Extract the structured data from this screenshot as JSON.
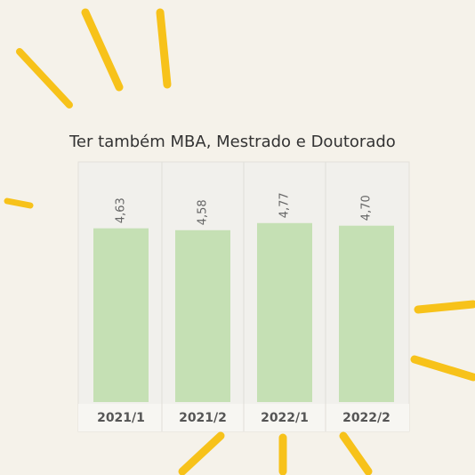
{
  "chart_data": {
    "type": "bar",
    "title": "Ter também MBA, Mestrado e Doutorado",
    "categories": [
      "2021/1",
      "2021/2",
      "2022/1",
      "2022/2"
    ],
    "values": [
      4.63,
      4.58,
      4.77,
      4.7
    ],
    "value_labels": [
      "4,63",
      "4,58",
      "4,77",
      "4,70"
    ],
    "color": "#c5e0b4",
    "ylim": [
      0,
      6.4
    ]
  }
}
